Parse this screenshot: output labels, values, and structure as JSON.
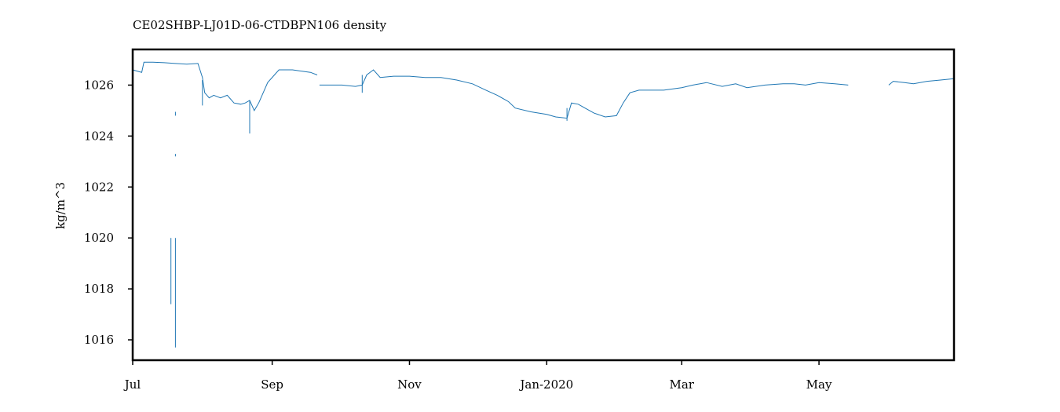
{
  "chart_data": {
    "type": "line",
    "title": "CE02SHBP-LJ01D-06-CTDBPN106 density",
    "xlabel": "",
    "ylabel": "kg/m^3",
    "x_axis": {
      "type": "date",
      "range": [
        "2019-07-01",
        "2020-06-30"
      ],
      "ticks": [
        {
          "date": "2019-07-01",
          "label": "Jul"
        },
        {
          "date": "2019-09-01",
          "label": "Sep"
        },
        {
          "date": "2019-11-01",
          "label": "Nov"
        },
        {
          "date": "2020-01-01",
          "label": "Jan-2020"
        },
        {
          "date": "2020-03-01",
          "label": "Mar"
        },
        {
          "date": "2020-05-01",
          "label": "May"
        }
      ]
    },
    "y_axis": {
      "range": [
        1015.2,
        1027.4
      ],
      "ticks": [
        1016,
        1018,
        1020,
        1022,
        1024,
        1026
      ]
    },
    "grid": false,
    "legend": "none",
    "series": [
      {
        "color": "#1f77b4",
        "segments": [
          [
            [
              "2019-07-01",
              1026.6
            ],
            [
              "2019-07-03",
              1026.55
            ],
            [
              "2019-07-05",
              1026.5
            ],
            [
              "2019-07-06",
              1026.9
            ],
            [
              "2019-07-10",
              1026.9
            ],
            [
              "2019-07-15",
              1026.88
            ],
            [
              "2019-07-20",
              1026.85
            ],
            [
              "2019-07-25",
              1026.82
            ],
            [
              "2019-07-30",
              1026.85
            ],
            [
              "2019-08-01",
              1026.3
            ],
            [
              "2019-08-02",
              1025.7
            ],
            [
              "2019-08-04",
              1025.5
            ],
            [
              "2019-08-06",
              1025.6
            ],
            [
              "2019-08-09",
              1025.5
            ],
            [
              "2019-08-12",
              1025.6
            ],
            [
              "2019-08-15",
              1025.3
            ],
            [
              "2019-08-18",
              1025.25
            ],
            [
              "2019-08-20",
              1025.3
            ],
            [
              "2019-08-22",
              1025.4
            ],
            [
              "2019-08-24",
              1025.0
            ],
            [
              "2019-08-26",
              1025.3
            ],
            [
              "2019-08-28",
              1025.7
            ],
            [
              "2019-08-30",
              1026.1
            ],
            [
              "2019-09-02",
              1026.4
            ],
            [
              "2019-09-04",
              1026.6
            ],
            [
              "2019-09-06",
              1026.6
            ],
            [
              "2019-09-10",
              1026.6
            ],
            [
              "2019-09-14",
              1026.55
            ],
            [
              "2019-09-18",
              1026.5
            ],
            [
              "2019-09-21",
              1026.4
            ]
          ],
          [
            [
              "2019-09-22",
              1026.0
            ],
            [
              "2019-09-27",
              1026.0
            ],
            [
              "2019-10-02",
              1026.0
            ],
            [
              "2019-10-08",
              1025.95
            ],
            [
              "2019-10-11",
              1026.0
            ],
            [
              "2019-10-13",
              1026.4
            ],
            [
              "2019-10-16",
              1026.6
            ],
            [
              "2019-10-19",
              1026.3
            ],
            [
              "2019-10-25",
              1026.35
            ],
            [
              "2019-11-01",
              1026.35
            ],
            [
              "2019-11-08",
              1026.3
            ],
            [
              "2019-11-15",
              1026.3
            ],
            [
              "2019-11-22",
              1026.2
            ],
            [
              "2019-11-29",
              1026.05
            ],
            [
              "2019-12-05",
              1025.8
            ],
            [
              "2019-12-10",
              1025.6
            ],
            [
              "2019-12-15",
              1025.35
            ],
            [
              "2019-12-18",
              1025.1
            ],
            [
              "2019-12-25",
              1024.95
            ],
            [
              "2020-01-01",
              1024.85
            ],
            [
              "2020-01-05",
              1024.75
            ],
            [
              "2020-01-10",
              1024.7
            ],
            [
              "2020-01-12",
              1025.3
            ],
            [
              "2020-01-15",
              1025.25
            ],
            [
              "2020-01-18",
              1025.1
            ],
            [
              "2020-01-22",
              1024.9
            ],
            [
              "2020-01-27",
              1024.75
            ],
            [
              "2020-02-01",
              1024.8
            ],
            [
              "2020-02-04",
              1025.3
            ],
            [
              "2020-02-07",
              1025.7
            ],
            [
              "2020-02-11",
              1025.8
            ],
            [
              "2020-02-16",
              1025.8
            ],
            [
              "2020-02-22",
              1025.8
            ],
            [
              "2020-03-01",
              1025.9
            ],
            [
              "2020-03-06",
              1026.0
            ],
            [
              "2020-03-12",
              1026.1
            ],
            [
              "2020-03-19",
              1025.95
            ],
            [
              "2020-03-25",
              1026.05
            ],
            [
              "2020-03-30",
              1025.9
            ],
            [
              "2020-04-07",
              1026.0
            ],
            [
              "2020-04-15",
              1026.05
            ],
            [
              "2020-04-20",
              1026.05
            ],
            [
              "2020-04-25",
              1026.0
            ],
            [
              "2020-05-01",
              1026.1
            ],
            [
              "2020-05-08",
              1026.05
            ],
            [
              "2020-05-14",
              1026.0
            ]
          ],
          [
            [
              "2020-06-01",
              1026.0
            ],
            [
              "2020-06-03",
              1026.15
            ],
            [
              "2020-06-08",
              1026.1
            ],
            [
              "2020-06-12",
              1026.05
            ],
            [
              "2020-06-18",
              1026.15
            ],
            [
              "2020-06-24",
              1026.2
            ],
            [
              "2020-06-30",
              1026.25
            ]
          ]
        ],
        "spikes": [
          {
            "date": "2019-07-18",
            "low": 1017.4,
            "high": 1020.0
          },
          {
            "date": "2019-07-20",
            "low": 1015.7,
            "high": 1020.0
          },
          {
            "date": "2019-07-20",
            "low": 1024.8,
            "high": 1024.95
          },
          {
            "date": "2019-07-20",
            "low": 1023.2,
            "high": 1023.3
          },
          {
            "date": "2019-08-22",
            "low": 1024.1,
            "high": 1025.4
          },
          {
            "date": "2019-08-01",
            "low": 1025.2,
            "high": 1026.2
          },
          {
            "date": "2019-10-11",
            "low": 1025.7,
            "high": 1026.4
          },
          {
            "date": "2020-01-10",
            "low": 1024.6,
            "high": 1025.1
          }
        ]
      }
    ]
  }
}
